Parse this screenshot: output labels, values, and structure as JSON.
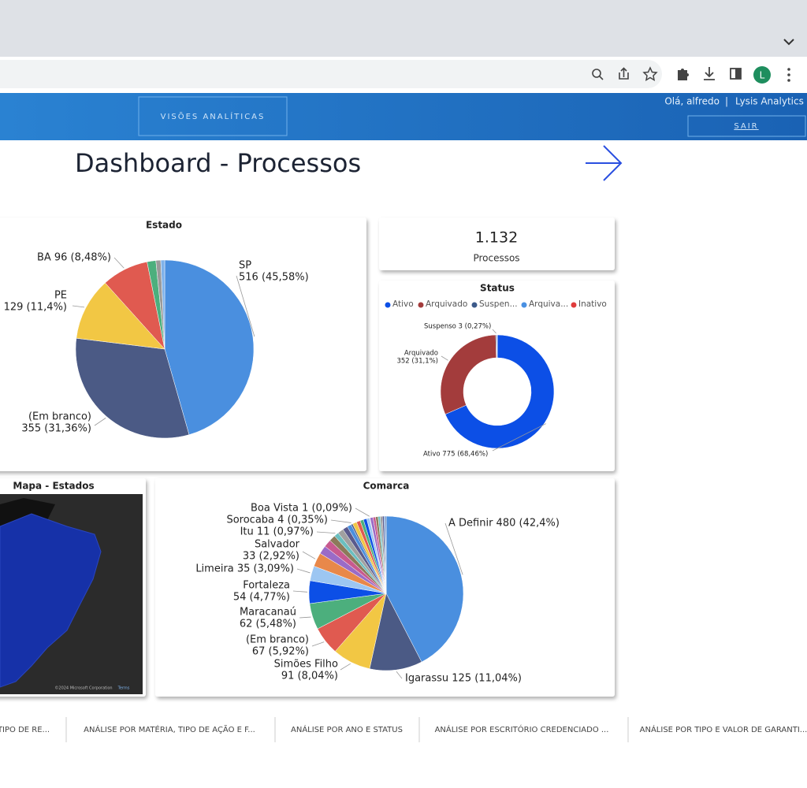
{
  "browser": {
    "avatar": "L"
  },
  "header": {
    "nav_button": "VISÕES ANALÍTICAS",
    "greeting": "Olá, alfredo",
    "separator": "|",
    "brand": "Lysis Analytics",
    "logout": "SAIR"
  },
  "title": "Dashboard - Processos",
  "kpi": {
    "value": "1.132",
    "label": "Processos"
  },
  "map": {
    "title": "Mapa - Estados",
    "attribution": "©2024 Microsoft Corporation",
    "terms": "Terms"
  },
  "chart_data": [
    {
      "type": "pie",
      "title": "Estado",
      "values": [
        516,
        355,
        129,
        96,
        18,
        10,
        8
      ],
      "value_labels": [
        [
          "SP",
          "516 (45,58%)"
        ],
        [
          "(Em branco)",
          "355 (31,36%)"
        ],
        [
          "PE",
          "129 (11,4%)"
        ],
        [
          "BA 96 (8,48%)"
        ],
        null,
        null,
        null
      ],
      "colors": [
        "#4a8fdf",
        "#4b5a85",
        "#f2c744",
        "#e05a50",
        "#4caf7d",
        "#9a9a9a",
        "#7fb2ea"
      ]
    },
    {
      "type": "donut",
      "title": "Status",
      "categories": [
        "Ativo",
        "Arquivado",
        "Suspen...",
        "Arquiva...",
        "Inativo"
      ],
      "values": [
        775,
        352,
        3,
        1,
        1
      ],
      "value_labels": [
        [
          "Ativo 775 (68,46%)"
        ],
        [
          "Arquivado",
          "352 (31,1%)"
        ],
        [
          "Suspenso 3 (0,27%)"
        ],
        null,
        null
      ],
      "colors": [
        "#0c4fe6",
        "#a33c3c",
        "#3c5a8a",
        "#4a90e2",
        "#e03c3c"
      ],
      "legend": true
    },
    {
      "type": "pie",
      "title": "Comarca",
      "values": [
        480,
        125,
        91,
        67,
        62,
        54,
        35,
        33,
        20,
        18,
        15,
        11,
        14,
        12,
        10,
        4,
        10,
        9,
        8,
        8,
        7,
        1,
        7,
        6,
        6,
        5,
        5,
        4,
        3,
        2
      ],
      "value_labels": [
        [
          "A Definir 480 (42,4%)"
        ],
        [
          "Igarassu 125 (11,04%)"
        ],
        [
          "Simões Filho",
          "91 (8,04%)"
        ],
        [
          "(Em branco)",
          "67 (5,92%)"
        ],
        [
          "Maracanaú",
          "62 (5,48%)"
        ],
        [
          "Fortaleza",
          "54 (4,77%)"
        ],
        [
          "Limeira 35 (3,09%)"
        ],
        [
          "Salvador",
          "33 (2,92%)"
        ],
        null,
        null,
        null,
        [
          "Itu 11 (0,97%)"
        ],
        null,
        null,
        null,
        [
          "Sorocaba 4 (0,35%)"
        ],
        null,
        null,
        null,
        null,
        null,
        [
          "Boa Vista 1 (0,09%)"
        ],
        null,
        null,
        null,
        null,
        null,
        null,
        null,
        null
      ],
      "colors": [
        "#4a8fdf",
        "#4b5a85",
        "#f2c744",
        "#e05a50",
        "#4caf7d",
        "#0c4fe6",
        "#9cc6f2",
        "#e8884a",
        "#9a6bc7",
        "#c85a8f",
        "#8c7a5a",
        "#6bbfbf",
        "#a0a0a0",
        "#5a5a8c"
      ]
    }
  ],
  "tabs": [
    "TIPO DE RE...",
    "ANÁLISE POR MATÉRIA, TIPO DE AÇÃO E F...",
    "ANÁLISE POR ANO E STATUS",
    "ANÁLISE POR ESCRITÓRIO CREDENCIADO ...",
    "ANÁLISE POR TIPO E VALOR DE GARANTI..."
  ]
}
